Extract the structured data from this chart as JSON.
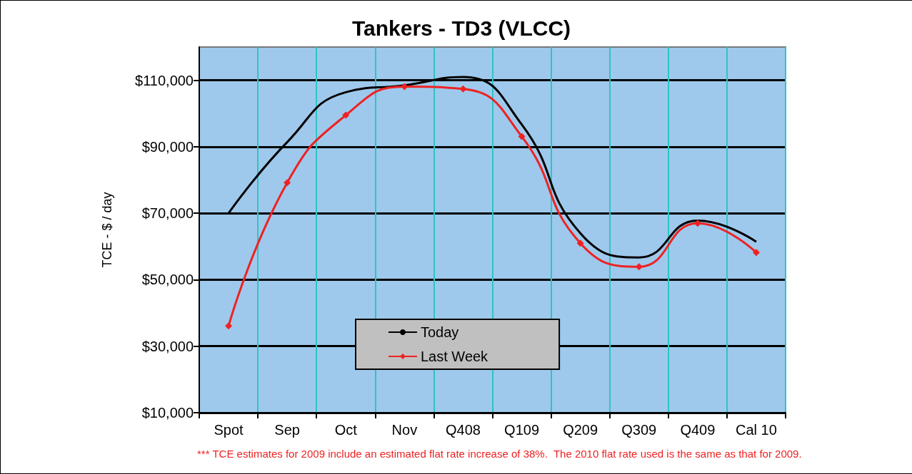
{
  "chart_data": {
    "type": "line",
    "title": "Tankers - TD3 (VLCC)",
    "ylabel": "TCE - $ / day",
    "categories": [
      "Spot",
      "Sep",
      "Oct",
      "Nov",
      "Q408",
      "Q109",
      "Q209",
      "Q309",
      "Q409",
      "Cal 10"
    ],
    "series": [
      {
        "name": "Today",
        "color": "#000000",
        "marker": "none",
        "values": [
          70000,
          91400,
          106400,
          108500,
          111000,
          96700,
          64000,
          56700,
          67800,
          61400
        ]
      },
      {
        "name": "Last Week",
        "color": "#ee2222",
        "marker": "diamond",
        "values": [
          36100,
          79200,
          99500,
          108100,
          107400,
          93100,
          61000,
          53900,
          67000,
          58200
        ]
      }
    ],
    "ylim": [
      10000,
      120000
    ],
    "yticks": [
      {
        "value": 10000,
        "label": "$10,000"
      },
      {
        "value": 30000,
        "label": "$30,000"
      },
      {
        "value": 50000,
        "label": "$50,000"
      },
      {
        "value": 70000,
        "label": "$70,000"
      },
      {
        "value": 90000,
        "label": "$90,000"
      },
      {
        "value": 110000,
        "label": "$110,000"
      }
    ],
    "grid": true,
    "legend": "bottom",
    "line_style": "solid",
    "annotations": [
      "*** TCE estimates for 2009 include an estimated flat rate increase of 38%.  The 2010 flat rate used is the same as that for 2009."
    ]
  }
}
